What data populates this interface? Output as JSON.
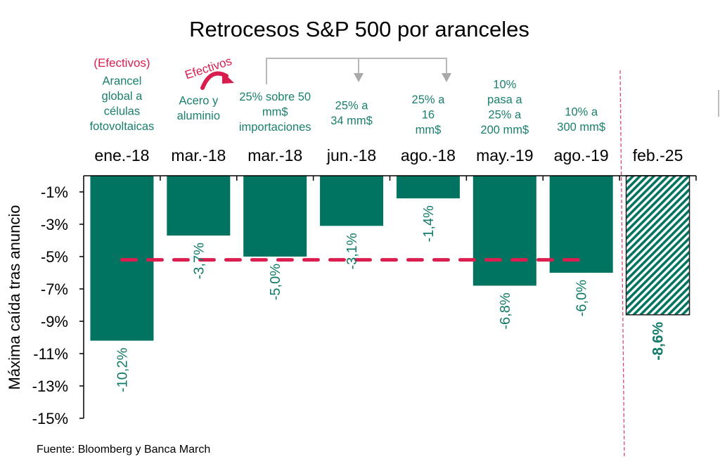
{
  "chart_data": {
    "type": "bar",
    "title": "Retrocesos S&P 500 por aranceles",
    "xlabel": "",
    "ylabel": "Máxima caída tras anuncio",
    "ylim": [
      -15,
      0
    ],
    "yticks": [
      -1,
      -3,
      -5,
      -7,
      -9,
      -11,
      -13,
      -15
    ],
    "ytick_labels": [
      "-1%",
      "-3%",
      "-5%",
      "-7%",
      "-9%",
      "-11%",
      "-13%",
      "-15%"
    ],
    "categories": [
      "ene.-18",
      "mar.-18",
      "mar.-18",
      "jun.-18",
      "ago.-18",
      "may.-19",
      "ago.-19",
      "feb.-25"
    ],
    "values": [
      -10.2,
      -3.7,
      -5.0,
      -3.1,
      -1.4,
      -6.8,
      -6.0,
      -8.6
    ],
    "data_labels": [
      "-10,2%",
      "-3,7%",
      "-5,0%",
      "-3,1%",
      "-1,4%",
      "-6,8%",
      "-6,0%",
      "-8,6%"
    ],
    "bar_styles": [
      "solid",
      "solid",
      "solid",
      "solid",
      "solid",
      "solid",
      "solid",
      "hatched"
    ],
    "average_line": {
      "value": -5.2,
      "from_category": 0,
      "to_category": 6,
      "style": "dashed"
    },
    "separator_after_category": 6,
    "annotations": [
      {
        "category": 0,
        "lines": [
          "Arancel",
          "global a",
          "células",
          "fotovoltaicas"
        ],
        "note": "(Efectivos)"
      },
      {
        "category": 1,
        "lines": [
          "Acero y",
          "aluminio"
        ],
        "note": "Efectivos"
      },
      {
        "category": 2,
        "lines": [
          "25% sobre 50",
          "mm$",
          "importaciones"
        ]
      },
      {
        "category": 3,
        "lines": [
          "25% a",
          "34 mm$"
        ]
      },
      {
        "category": 4,
        "lines": [
          "25% a",
          "16",
          "mm$"
        ]
      },
      {
        "category": 5,
        "lines": [
          "10%",
          "pasa a",
          "25% a",
          "200 mm$"
        ]
      },
      {
        "category": 6,
        "lines": [
          "10% a",
          "300 mm$"
        ]
      }
    ],
    "grid": false,
    "colors": {
      "bar": "#007461",
      "average_line": "#dc1d4f",
      "separator": "#e0457a",
      "annotation": "#1a7f6e",
      "note": "#d81e4e"
    },
    "source": "Fuente: Bloomberg y Banca March"
  }
}
